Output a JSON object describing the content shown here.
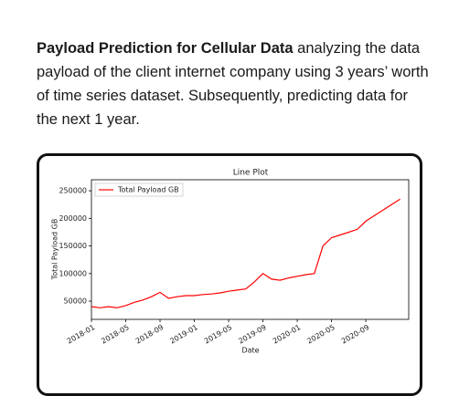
{
  "intro": {
    "heading": "Payload Prediction for Cellular Data",
    "body": "analyzing the data payload of the client internet company using 3 years’ worth of time series dataset. Subsequently, predicting data for the next 1 year."
  },
  "chart_data": {
    "type": "line",
    "title": "Line Plot",
    "x_label": "Date",
    "y_label": "Total Payload GB",
    "x": [
      "2018-01",
      "2018-02",
      "2018-03",
      "2018-04",
      "2018-05",
      "2018-06",
      "2018-07",
      "2018-08",
      "2018-09",
      "2018-10",
      "2018-11",
      "2018-12",
      "2019-01",
      "2019-02",
      "2019-03",
      "2019-04",
      "2019-05",
      "2019-06",
      "2019-07",
      "2019-08",
      "2019-09",
      "2019-10",
      "2019-11",
      "2019-12",
      "2020-01",
      "2020-02",
      "2020-03",
      "2020-04",
      "2020-05",
      "2020-06",
      "2020-07",
      "2020-08",
      "2020-09",
      "2020-10",
      "2020-11",
      "2020-12",
      "2021-01"
    ],
    "series": [
      {
        "name": "Total Payload GB",
        "color": "#ff0000",
        "values": [
          40000,
          38000,
          40000,
          38000,
          42000,
          48000,
          52000,
          58000,
          66000,
          55000,
          58000,
          60000,
          60000,
          62000,
          63000,
          65000,
          68000,
          70000,
          72000,
          85000,
          100000,
          90000,
          88000,
          92000,
          95000,
          98000,
          100000,
          150000,
          165000,
          170000,
          175000,
          180000,
          195000,
          205000,
          215000,
          225000,
          235000
        ]
      }
    ],
    "xlim": [
      "2018-01",
      "2021-02"
    ],
    "xticks": [
      "2018-01",
      "2018-05",
      "2018-09",
      "2019-01",
      "2019-05",
      "2019-09",
      "2020-01",
      "2020-05",
      "2020-09"
    ],
    "ylim": [
      17000,
      270000
    ],
    "yticks": [
      50000,
      100000,
      150000,
      200000,
      250000
    ],
    "legend": "upper left"
  }
}
